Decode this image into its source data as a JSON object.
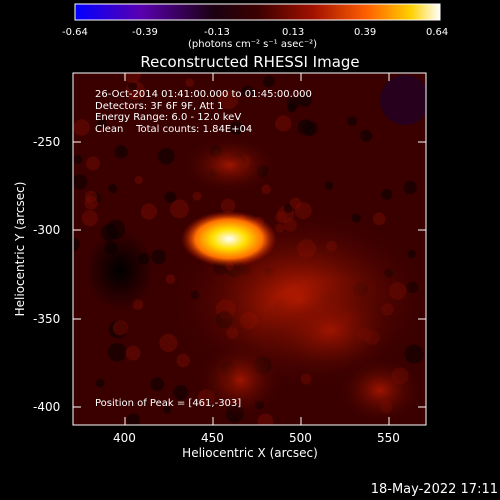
{
  "colorbar": {
    "ticks": [
      "-0.64",
      "-0.39",
      "-0.13",
      "0.13",
      "0.39",
      "0.64"
    ],
    "unit_label": "(photons cm⁻² s⁻¹ asec⁻²)",
    "colors": [
      "#0000ff",
      "#6a0090",
      "#000000",
      "#5a0000",
      "#c81e00",
      "#ff7000",
      "#ffdd00",
      "#ffffff"
    ]
  },
  "title": "Reconstructed RHESSI Image",
  "info": {
    "line1": "26-Oct-2014 01:41:00.000 to 01:45:00.000",
    "line2": "Detectors: 3F 6F 9F, Att 1",
    "line3": "Energy Range: 6.0 - 12.0 keV",
    "line4": "Clean    Total counts: 1.84E+04",
    "peak": "Position of Peak = [461,-303]"
  },
  "axes": {
    "xlabel": "Heliocentric X (arcsec)",
    "ylabel": "Heliocentric Y (arcsec)",
    "xticks": [
      "400",
      "450",
      "500",
      "550"
    ],
    "yticks": [
      "-250",
      "-300",
      "-350",
      "-400"
    ]
  },
  "timestamp": "18-May-2022 17:11"
}
